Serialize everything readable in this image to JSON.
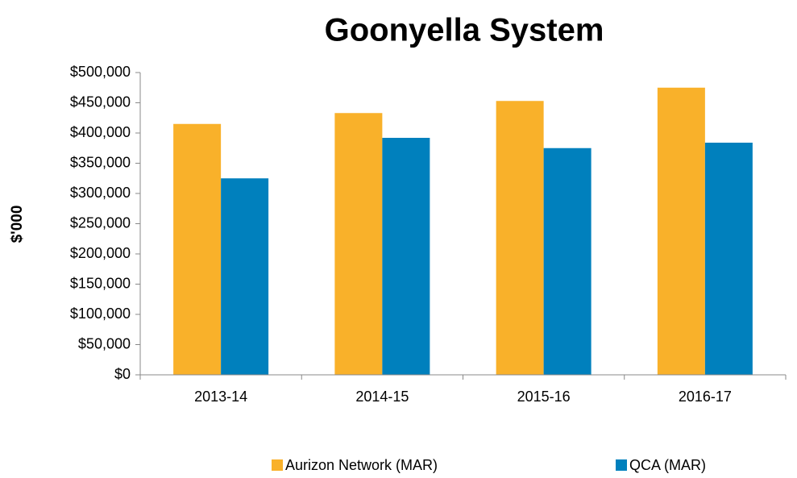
{
  "chart_data": {
    "type": "bar",
    "title": "Goonyella System",
    "y_label": "$'000",
    "categories": [
      "2013-14",
      "2014-15",
      "2015-16",
      "2016-17"
    ],
    "series": [
      {
        "name": "Aurizon Network (MAR)",
        "color": "#f9b12a",
        "values": [
          415000,
          433000,
          453000,
          475000
        ]
      },
      {
        "name": "QCA (MAR)",
        "color": "#0080bd",
        "values": [
          325000,
          392000,
          375000,
          384000
        ]
      }
    ],
    "ylim": [
      0,
      500000
    ],
    "yticks": [
      {
        "value": 0,
        "label": "$0"
      },
      {
        "value": 50000,
        "label": "$50,000"
      },
      {
        "value": 100000,
        "label": "$100,000"
      },
      {
        "value": 150000,
        "label": "$150,000"
      },
      {
        "value": 200000,
        "label": "$200,000"
      },
      {
        "value": 250000,
        "label": "$250,000"
      },
      {
        "value": 300000,
        "label": "$300,000"
      },
      {
        "value": 350000,
        "label": "$350,000"
      },
      {
        "value": 400000,
        "label": "$400,000"
      },
      {
        "value": 450000,
        "label": "$450,000"
      },
      {
        "value": 500000,
        "label": "$500,000"
      }
    ],
    "grid": false,
    "legend": "bottom"
  }
}
